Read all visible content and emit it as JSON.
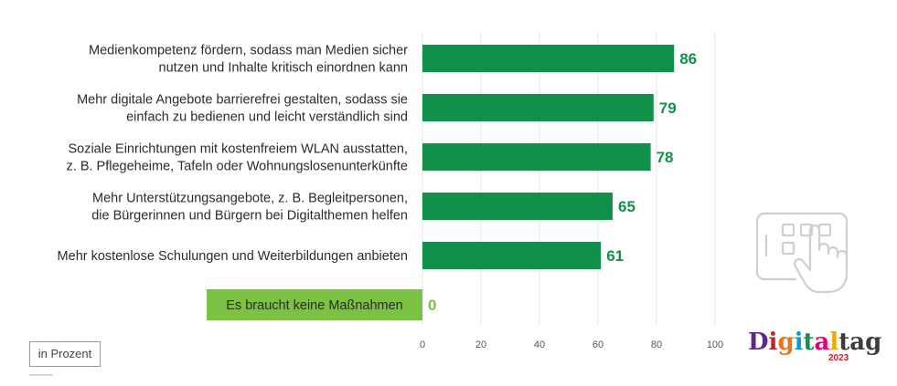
{
  "chart_data": {
    "type": "bar",
    "orientation": "horizontal",
    "categories": [
      [
        "Medienkompetenz fördern, sodass man Medien sicher",
        "nutzen und Inhalte kritisch einordnen kann"
      ],
      [
        "Mehr digitale Angebote barrierefrei gestalten, sodass sie",
        "einfach zu bedienen und leicht verständlich sind"
      ],
      [
        "Soziale Einrichtungen mit kostenfreiem WLAN ausstatten,",
        "z. B. Pflegeheime, Tafeln oder Wohnungslosenunterkünfte"
      ],
      [
        "Mehr Unterstützungsangebote, z. B. Begleitpersonen,",
        "die Bürgerinnen und Bürgern bei Digitalthemen helfen"
      ],
      [
        "Mehr kostenlose Schulungen und Weiterbildungen anbieten"
      ],
      [
        "Es braucht keine Maßnahmen"
      ]
    ],
    "values": [
      86,
      79,
      78,
      65,
      61,
      0
    ],
    "highlighted_category_index": 5,
    "xlim": [
      0,
      100
    ],
    "xticks": [
      0,
      20,
      40,
      60,
      80,
      100
    ],
    "grid": true,
    "colors": {
      "bar": "#11904a",
      "value_label": "#11904a",
      "highlight_box": "#7cc242",
      "highlight_value": "#7cc242",
      "grid": "#e3e3e3"
    }
  },
  "unit_label": "in Prozent",
  "logo": {
    "letters": [
      "D",
      "i",
      "g",
      "i",
      "t",
      "a",
      "l",
      "t",
      "a",
      "g"
    ],
    "letter_colors": [
      "#5b2a86",
      "#c0262d",
      "#e87722",
      "#0a9bd0",
      "#11904a",
      "#e6007e",
      "#f2a900",
      "#3c3c3c",
      "#3c3c3c",
      "#3c3c3c"
    ],
    "year": "2023"
  },
  "icons": {
    "decoration": "tablet-touch-hand-icon"
  }
}
